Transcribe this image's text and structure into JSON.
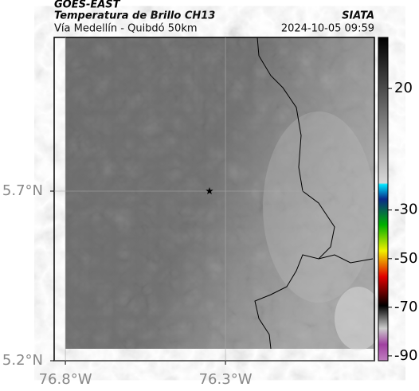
{
  "header": {
    "satellite": "GOES-EAST",
    "product": "Temperatura de Brillo CH13",
    "region": "Vía Medellín - Quibdó 50km",
    "source": "SIATA",
    "timestamp": "2024-10-05 09:59"
  },
  "map": {
    "xlim": [
      -76.835,
      -75.835
    ],
    "ylim": [
      5.2,
      6.153
    ],
    "xticks": [
      {
        "value": -76.8,
        "label": "76.8°W"
      },
      {
        "value": -76.3,
        "label": "76.3°W"
      }
    ],
    "yticks": [
      {
        "value": 5.2,
        "label": "5.2°N"
      },
      {
        "value": 5.7,
        "label": "5.7°N"
      }
    ],
    "grid": true,
    "marker": {
      "lon": -76.35,
      "lat": 5.7
    }
  },
  "colorbar": {
    "lim": [
      -92,
      41
    ],
    "ticks": [
      20,
      -30,
      -50,
      -70,
      -90
    ]
  }
}
